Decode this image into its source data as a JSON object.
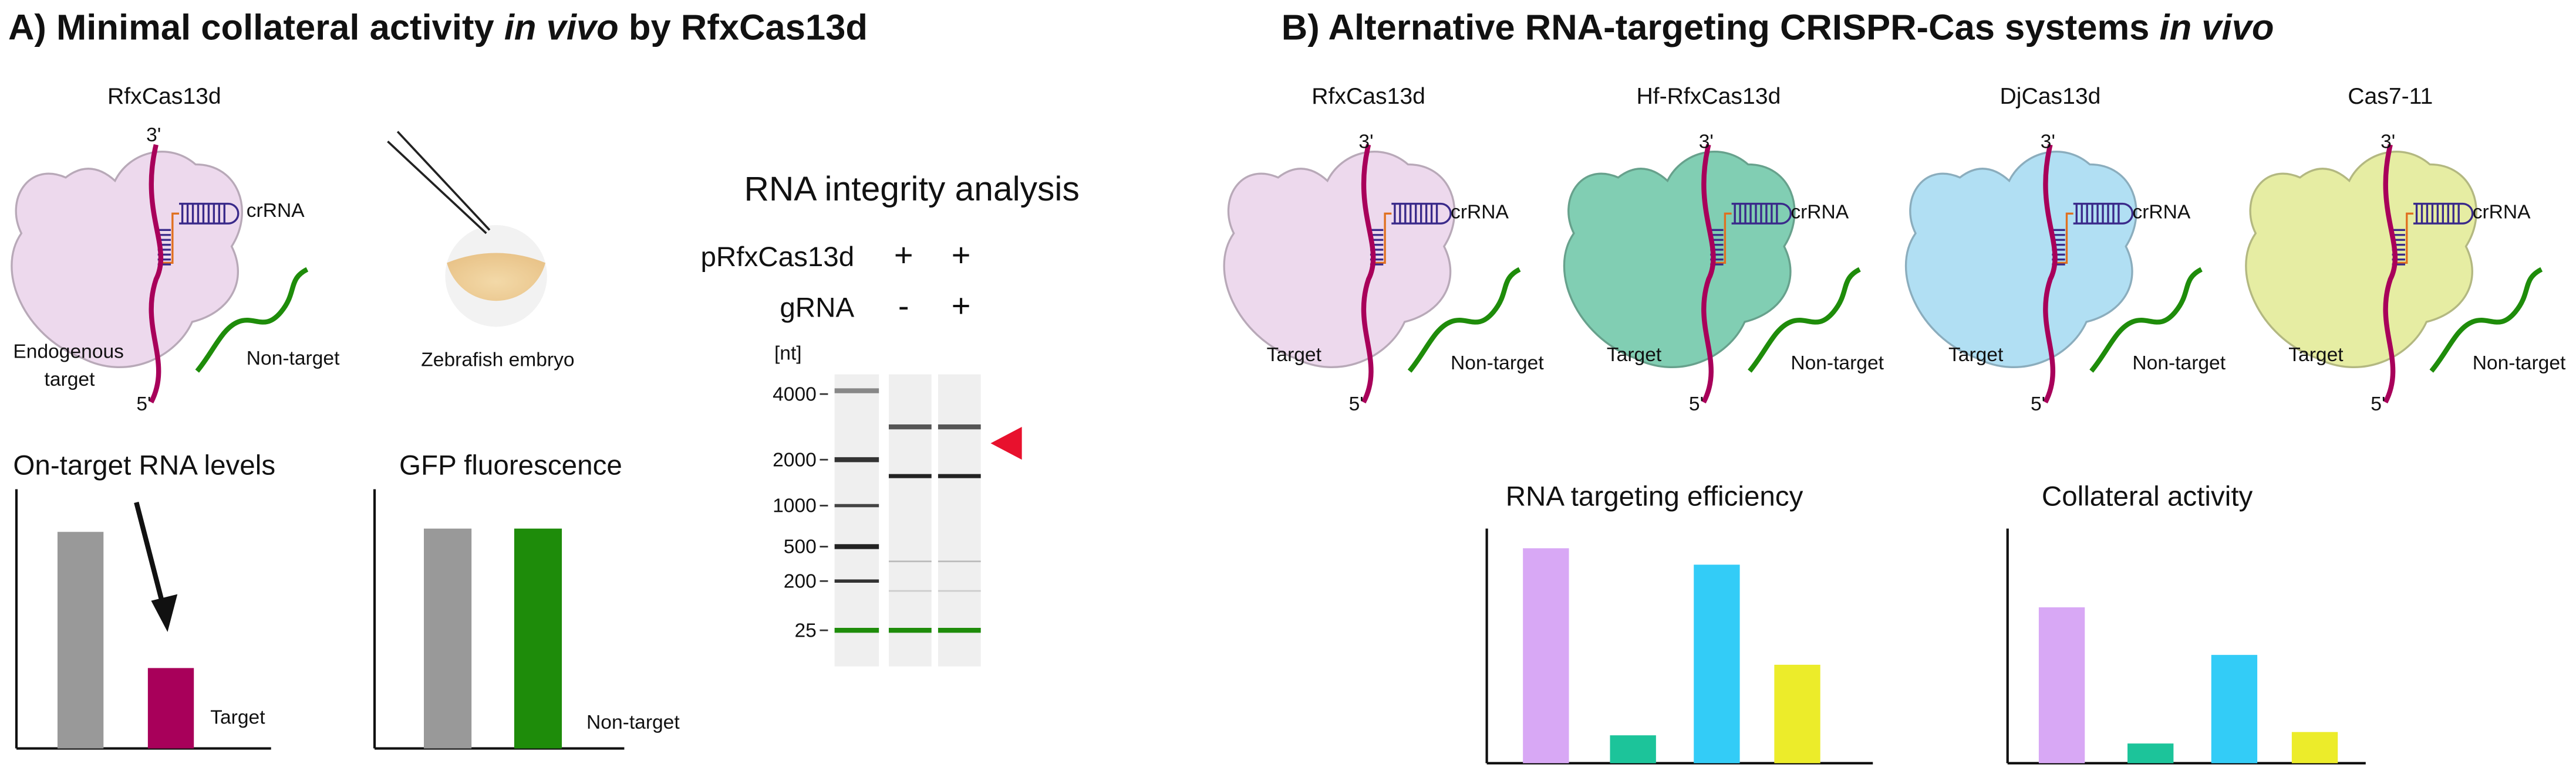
{
  "panel_a": {
    "title_parts": [
      "A) Minimal collateral activity ",
      "in vivo",
      " by RfxCas13d"
    ],
    "protein": "RfxCas13d",
    "three_prime": "3'",
    "five_prime": "5'",
    "crrna": "crRNA",
    "target_lines": [
      "Endogenous",
      "target"
    ],
    "non_target": "Non-target",
    "embryo": "Zebrafish embryo",
    "gel": {
      "title": "RNA integrity analysis",
      "rows": [
        {
          "label": "pRfxCas13d",
          "lanes": [
            "+",
            "+"
          ]
        },
        {
          "label": "gRNA",
          "lanes": [
            "-",
            "+"
          ]
        }
      ],
      "unit": "[nt]",
      "ladder": [
        "4000",
        "2000",
        "1000",
        "500",
        "200",
        "25"
      ]
    },
    "charts": [
      {
        "title": "On-target RNA levels",
        "values": [
          132,
          49
        ],
        "colors": [
          "#999999",
          "#a8005a"
        ],
        "label": "Target",
        "label_color": "#a8005a"
      },
      {
        "title": "GFP fluorescence",
        "values": [
          134,
          134
        ],
        "colors": [
          "#999999",
          "#1e8c0a"
        ],
        "label": "Non-target",
        "label_color": "#1e8c0a"
      }
    ]
  },
  "panel_b": {
    "title_parts": [
      "B) Alternative RNA-targeting CRISPR-Cas systems ",
      "in vivo"
    ],
    "systems": [
      {
        "name": "RfxCas13d",
        "color": "#ecd5ec"
      },
      {
        "name": "Hf-RfxCas13d",
        "color": "#74c9ab"
      },
      {
        "name": "DjCas13d",
        "color": "#a9dcf2"
      },
      {
        "name": "Cas7-11",
        "color": "#e4ec9a"
      }
    ],
    "three_prime": "3'",
    "five_prime": "5'",
    "crrna": "crRNA",
    "target": "Target",
    "non_target": "Non-target",
    "charts": [
      {
        "title": "RNA targeting efficiency",
        "values": [
          131,
          17,
          121,
          60
        ],
        "colors": [
          "#d8a8f5",
          "#1cc49a",
          "#33ccf7",
          "#ecec2a"
        ]
      },
      {
        "title": "Collateral activity",
        "values": [
          95,
          12,
          66,
          19
        ],
        "colors": [
          "#d8a8f5",
          "#1cc49a",
          "#33ccf7",
          "#ecec2a"
        ]
      }
    ]
  }
}
